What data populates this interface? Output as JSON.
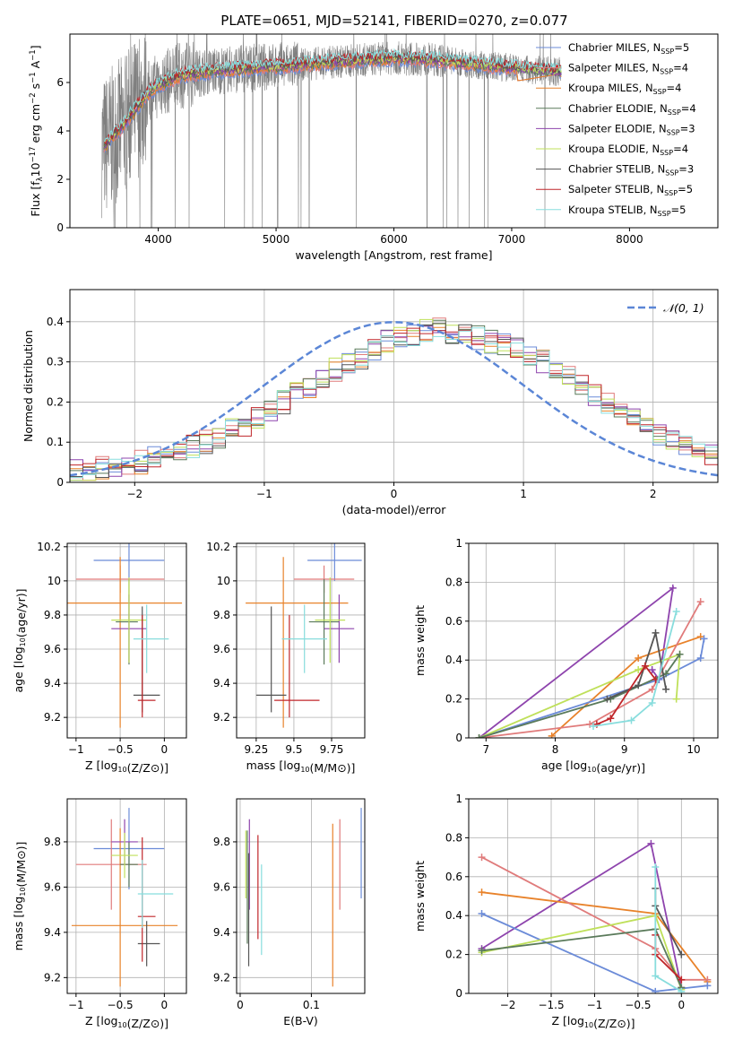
{
  "figure": {
    "title": "PLATE=0651, MJD=52141, FIBERID=0270, z=0.077"
  },
  "colors": {
    "data": "#7f7f7f",
    "grid": "#b0b0b0",
    "series": [
      "#6b8bd8",
      "#e07b7b",
      "#e8822a",
      "#5a7a5a",
      "#8e44ad",
      "#bfe05a",
      "#555555",
      "#c0262a",
      "#88dddd"
    ],
    "normal": "#5b86d6"
  },
  "chart_data": [
    {
      "id": "spectrum",
      "type": "line",
      "title": "PLATE=0651, MJD=52141, FIBERID=0270, z=0.077",
      "xlabel": "wavelength [Angstrom, rest frame]",
      "ylabel": "Flux [f_λ 10^-17 erg cm^-2 s^-1 A^-1]",
      "xlim": [
        3250,
        8750
      ],
      "ylim": [
        0,
        8
      ],
      "xticks": [
        4000,
        5000,
        6000,
        7000,
        8000
      ],
      "yticks": [
        0,
        2,
        4,
        6
      ],
      "legend_position": "right",
      "legend": [
        {
          "base": "Chabrier MILES, N",
          "sub": "SSP",
          "tail": "=5"
        },
        {
          "base": "Salpeter MILES, N",
          "sub": "SSP",
          "tail": "=4"
        },
        {
          "base": "Kroupa MILES, N",
          "sub": "SSP",
          "tail": "=4"
        },
        {
          "base": "Chabrier ELODIE, N",
          "sub": "SSP",
          "tail": "=4"
        },
        {
          "base": "Salpeter ELODIE, N",
          "sub": "SSP",
          "tail": "=3"
        },
        {
          "base": "Kroupa ELODIE, N",
          "sub": "SSP",
          "tail": "=4"
        },
        {
          "base": "Chabrier STELIB, N",
          "sub": "SSP",
          "tail": "=3"
        },
        {
          "base": "Salpeter STELIB, N",
          "sub": "SSP",
          "tail": "=5"
        },
        {
          "base": "Kroupa STELIB, N",
          "sub": "SSP",
          "tail": "=5"
        }
      ],
      "continuum": {
        "x": [
          3550,
          3700,
          3900,
          4000,
          4200,
          4500,
          4800,
          5100,
          5500,
          5800,
          6000,
          6300,
          6600,
          6900,
          7100,
          7400
        ],
        "y": [
          3.4,
          4.2,
          5.5,
          5.9,
          6.3,
          6.5,
          6.6,
          6.7,
          6.85,
          6.95,
          7.0,
          6.95,
          6.8,
          6.65,
          6.55,
          6.45
        ]
      },
      "model_end": {
        "x": [
          7100,
          7250,
          7400
        ],
        "y": [
          5.8,
          6.1,
          6.35
        ]
      }
    },
    {
      "id": "residuals",
      "type": "histogram",
      "xlabel": "(data-model)/error",
      "ylabel": "Normed distribution",
      "xlim": [
        -2.5,
        2.5
      ],
      "ylim": [
        0,
        0.48
      ],
      "xticks": [
        -2,
        -1,
        0,
        1,
        2
      ],
      "yticks": [
        0.0,
        0.1,
        0.2,
        0.3,
        0.4
      ],
      "grid": true,
      "legend_position": "top-right",
      "legend": "N(0,1)",
      "bin_width": 0.1,
      "bin_start": -2.5,
      "base_values": [
        0.03,
        0.03,
        0.035,
        0.04,
        0.045,
        0.05,
        0.06,
        0.07,
        0.08,
        0.09,
        0.1,
        0.115,
        0.13,
        0.145,
        0.16,
        0.18,
        0.2,
        0.22,
        0.24,
        0.26,
        0.28,
        0.3,
        0.31,
        0.33,
        0.35,
        0.36,
        0.37,
        0.38,
        0.38,
        0.37,
        0.37,
        0.36,
        0.35,
        0.34,
        0.33,
        0.32,
        0.3,
        0.28,
        0.26,
        0.24,
        0.22,
        0.2,
        0.18,
        0.16,
        0.14,
        0.12,
        0.1,
        0.09,
        0.08,
        0.07
      ]
    },
    {
      "id": "age-vs-Z",
      "type": "errorbar",
      "xlabel": "Z [log10(Z/Z⊙)]",
      "ylabel": "age [log10(age/yr)]",
      "xlim": [
        -1.1,
        0.25
      ],
      "ylim": [
        9.08,
        10.22
      ],
      "xticks": [
        -1.0,
        -0.5,
        0.0
      ],
      "yticks": [
        9.2,
        9.4,
        9.6,
        9.8,
        10.0,
        10.2
      ],
      "grid": true,
      "points": [
        {
          "x": -0.4,
          "xerr": [
            0.4,
            0.4
          ],
          "y": 10.12,
          "yerr": [
            0.12,
            0.12
          ],
          "c": 0
        },
        {
          "x": -0.5,
          "xerr": [
            0.5,
            0.5
          ],
          "y": 10.01,
          "yerr": [
            0.08,
            0.08
          ],
          "c": 1
        },
        {
          "x": -0.5,
          "xerr": [
            0.7,
            0.7
          ],
          "y": 9.87,
          "yerr": [
            0.73,
            0.27
          ],
          "c": 2
        },
        {
          "x": -0.4,
          "xerr": [
            0.15,
            0.1
          ],
          "y": 9.76,
          "yerr": [
            0.25,
            0.25
          ],
          "c": 3
        },
        {
          "x": -0.4,
          "xerr": [
            0.2,
            0.2
          ],
          "y": 9.72,
          "yerr": [
            0.2,
            0.2
          ],
          "c": 4
        },
        {
          "x": -0.4,
          "xerr": [
            0.2,
            0.2
          ],
          "y": 9.77,
          "yerr": [
            0.25,
            0.25
          ],
          "c": 5
        },
        {
          "x": -0.25,
          "xerr": [
            0.1,
            0.2
          ],
          "y": 9.33,
          "yerr": [
            0.1,
            0.52
          ],
          "c": 6
        },
        {
          "x": -0.25,
          "xerr": [
            0.05,
            0.15
          ],
          "y": 9.3,
          "yerr": [
            0.1,
            0.5
          ],
          "c": 7
        },
        {
          "x": -0.2,
          "xerr": [
            0.15,
            0.25
          ],
          "y": 9.66,
          "yerr": [
            0.2,
            0.2
          ],
          "c": 8
        }
      ]
    },
    {
      "id": "age-vs-mass",
      "type": "errorbar",
      "xlabel": "mass [log10(M/M⊙)]",
      "ylabel": "",
      "xlim": [
        9.12,
        9.97
      ],
      "ylim": [
        9.08,
        10.22
      ],
      "xticks": [
        9.25,
        9.5,
        9.75
      ],
      "yticks": [
        9.2,
        9.4,
        9.6,
        9.8,
        10.0,
        10.2
      ],
      "grid": true,
      "points": [
        {
          "x": 9.77,
          "xerr": [
            0.18,
            0.18
          ],
          "y": 10.12,
          "yerr": [
            0.12,
            0.12
          ],
          "c": 0
        },
        {
          "x": 9.7,
          "xerr": [
            0.2,
            0.2
          ],
          "y": 10.01,
          "yerr": [
            0.08,
            0.08
          ],
          "c": 1
        },
        {
          "x": 9.43,
          "xerr": [
            0.25,
            0.43
          ],
          "y": 9.87,
          "yerr": [
            0.73,
            0.27
          ],
          "c": 2
        },
        {
          "x": 9.7,
          "xerr": [
            0.1,
            0.1
          ],
          "y": 9.76,
          "yerr": [
            0.25,
            0.25
          ],
          "c": 3
        },
        {
          "x": 9.8,
          "xerr": [
            0.1,
            0.1
          ],
          "y": 9.72,
          "yerr": [
            0.2,
            0.2
          ],
          "c": 4
        },
        {
          "x": 9.74,
          "xerr": [
            0.1,
            0.1
          ],
          "y": 9.77,
          "yerr": [
            0.25,
            0.25
          ],
          "c": 5
        },
        {
          "x": 9.35,
          "xerr": [
            0.1,
            0.1
          ],
          "y": 9.33,
          "yerr": [
            0.1,
            0.52
          ],
          "c": 6
        },
        {
          "x": 9.47,
          "xerr": [
            0.1,
            0.2
          ],
          "y": 9.3,
          "yerr": [
            0.1,
            0.5
          ],
          "c": 7
        },
        {
          "x": 9.57,
          "xerr": [
            0.15,
            0.15
          ],
          "y": 9.66,
          "yerr": [
            0.2,
            0.2
          ],
          "c": 8
        }
      ]
    },
    {
      "id": "weight-vs-age",
      "type": "line",
      "xlabel": "age [log10(age/yr)]",
      "ylabel": "mass weight",
      "xlim": [
        6.75,
        10.35
      ],
      "ylim": [
        0,
        1
      ],
      "xticks": [
        7,
        8,
        9,
        10
      ],
      "yticks": [
        0.0,
        0.2,
        0.4,
        0.6,
        0.8,
        1.0
      ],
      "grid": true,
      "series": [
        {
          "c": 4,
          "x": [
            6.9,
            9.7,
            9.5,
            9.4
          ],
          "y": [
            0.0,
            0.77,
            0.3,
            0.35
          ]
        },
        {
          "c": 2,
          "x": [
            7.95,
            9.2,
            10.1
          ],
          "y": [
            0.01,
            0.41,
            0.52
          ]
        },
        {
          "c": 1,
          "x": [
            6.9,
            8.5,
            9.4,
            10.1
          ],
          "y": [
            0.0,
            0.07,
            0.25,
            0.7
          ]
        },
        {
          "c": 0,
          "x": [
            6.9,
            9.5,
            10.1,
            10.15
          ],
          "y": [
            0.0,
            0.3,
            0.41,
            0.51
          ]
        },
        {
          "c": 5,
          "x": [
            6.9,
            9.2,
            9.8,
            9.75
          ],
          "y": [
            0.0,
            0.35,
            0.43,
            0.2
          ]
        },
        {
          "c": 3,
          "x": [
            6.9,
            8.8,
            9.6,
            9.8
          ],
          "y": [
            0.0,
            0.2,
            0.33,
            0.43
          ]
        },
        {
          "c": 6,
          "x": [
            8.75,
            9.2,
            9.45,
            9.6
          ],
          "y": [
            0.2,
            0.27,
            0.54,
            0.25
          ]
        },
        {
          "c": 7,
          "x": [
            8.6,
            8.8,
            9.3,
            9.45
          ],
          "y": [
            0.07,
            0.1,
            0.37,
            0.3
          ]
        },
        {
          "c": 8,
          "x": [
            8.55,
            9.1,
            9.4,
            9.75
          ],
          "y": [
            0.06,
            0.09,
            0.18,
            0.65
          ]
        }
      ]
    },
    {
      "id": "mass-vs-Z",
      "type": "errorbar",
      "xlabel": "Z [log10(Z/Z⊙)]",
      "ylabel": "mass [log10(M/M⊙)]",
      "xlim": [
        -1.1,
        0.25
      ],
      "ylim": [
        9.13,
        9.99
      ],
      "xticks": [
        -1.0,
        -0.5,
        0.0
      ],
      "yticks": [
        9.2,
        9.4,
        9.6,
        9.8
      ],
      "grid": true,
      "points": [
        {
          "x": -0.4,
          "xerr": [
            0.4,
            0.4
          ],
          "y": 9.77,
          "yerr": [
            0.18,
            0.18
          ],
          "c": 0
        },
        {
          "x": -0.6,
          "xerr": [
            0.4,
            0.4
          ],
          "y": 9.7,
          "yerr": [
            0.2,
            0.2
          ],
          "c": 1
        },
        {
          "x": -0.5,
          "xerr": [
            0.55,
            0.65
          ],
          "y": 9.43,
          "yerr": [
            0.27,
            0.43
          ],
          "c": 2
        },
        {
          "x": -0.4,
          "xerr": [
            0.1,
            0.1
          ],
          "y": 9.7,
          "yerr": [
            0.1,
            0.1
          ],
          "c": 3
        },
        {
          "x": -0.45,
          "xerr": [
            0.15,
            0.15
          ],
          "y": 9.8,
          "yerr": [
            0.1,
            0.1
          ],
          "c": 4
        },
        {
          "x": -0.45,
          "xerr": [
            0.15,
            0.15
          ],
          "y": 9.74,
          "yerr": [
            0.1,
            0.1
          ],
          "c": 5
        },
        {
          "x": -0.2,
          "xerr": [
            0.1,
            0.15
          ],
          "y": 9.35,
          "yerr": [
            0.1,
            0.1
          ],
          "c": 6
        },
        {
          "x": -0.25,
          "xerr": [
            0.05,
            0.15
          ],
          "y": 9.47,
          "yerr": [
            0.2,
            0.35
          ],
          "c": 7
        },
        {
          "x": -0.25,
          "xerr": [
            0.05,
            0.35
          ],
          "y": 9.57,
          "yerr": [
            0.15,
            0.15
          ],
          "c": 8
        }
      ]
    },
    {
      "id": "mass-vs-ebv",
      "type": "errorbar",
      "xlabel": "E(B-V)",
      "ylabel": "",
      "xlim": [
        -0.005,
        0.175
      ],
      "ylim": [
        9.13,
        9.99
      ],
      "xticks": [
        0.0,
        0.1
      ],
      "yticks": [
        9.2,
        9.4,
        9.6,
        9.8
      ],
      "grid": true,
      "points": [
        {
          "x": 0.17,
          "y": 9.75,
          "yerr": [
            0.2,
            0.2
          ],
          "c": 0
        },
        {
          "x": 0.14,
          "y": 9.7,
          "yerr": [
            0.2,
            0.2
          ],
          "c": 1
        },
        {
          "x": 0.13,
          "y": 9.52,
          "yerr": [
            0.36,
            0.36
          ],
          "c": 2
        },
        {
          "x": 0.01,
          "y": 9.6,
          "yerr": [
            0.25,
            0.25
          ],
          "c": 3
        },
        {
          "x": 0.013,
          "y": 9.7,
          "yerr": [
            0.2,
            0.2
          ],
          "c": 4
        },
        {
          "x": 0.008,
          "y": 9.7,
          "yerr": [
            0.15,
            0.15
          ],
          "c": 5
        },
        {
          "x": 0.012,
          "y": 9.5,
          "yerr": [
            0.25,
            0.25
          ],
          "c": 6
        },
        {
          "x": 0.025,
          "y": 9.6,
          "yerr": [
            0.23,
            0.23
          ],
          "c": 7
        },
        {
          "x": 0.03,
          "y": 9.5,
          "yerr": [
            0.2,
            0.2
          ],
          "c": 8
        }
      ]
    },
    {
      "id": "weight-vs-Z",
      "type": "line",
      "xlabel": "Z [log10(Z/Z⊙)]",
      "ylabel": "mass weight",
      "xlim": [
        -2.45,
        0.42
      ],
      "ylim": [
        0,
        1
      ],
      "xticks": [
        -2.0,
        -1.5,
        -1.0,
        -0.5,
        0.0
      ],
      "yticks": [
        0.0,
        0.2,
        0.4,
        0.6,
        0.8,
        1.0
      ],
      "grid": true,
      "series": [
        {
          "c": 4,
          "x": [
            -2.3,
            -0.35,
            0.0
          ],
          "y": [
            0.23,
            0.77,
            0.03
          ]
        },
        {
          "c": 2,
          "x": [
            -2.3,
            -0.3,
            0.3
          ],
          "y": [
            0.52,
            0.41,
            0.06
          ]
        },
        {
          "c": 1,
          "x": [
            -2.3,
            -0.3,
            0.0,
            0.3
          ],
          "y": [
            0.7,
            0.23,
            0.07,
            0.07
          ]
        },
        {
          "c": 0,
          "x": [
            -2.3,
            -0.3,
            0.3
          ],
          "y": [
            0.41,
            0.01,
            0.04
          ]
        },
        {
          "c": 5,
          "x": [
            -2.3,
            -0.3,
            0.0
          ],
          "y": [
            0.21,
            0.4,
            0.02
          ]
        },
        {
          "c": 3,
          "x": [
            -2.3,
            -0.3,
            0.0
          ],
          "y": [
            0.22,
            0.33,
            0.03
          ]
        },
        {
          "c": 6,
          "x": [
            -0.3,
            -0.3,
            0.0
          ],
          "y": [
            0.54,
            0.45,
            0.2
          ]
        },
        {
          "c": 7,
          "x": [
            -0.3,
            -0.3,
            0.0
          ],
          "y": [
            0.3,
            0.2,
            0.07
          ]
        },
        {
          "c": 8,
          "x": [
            -0.3,
            -0.3,
            0.0
          ],
          "y": [
            0.65,
            0.09,
            0.01
          ]
        }
      ]
    }
  ]
}
